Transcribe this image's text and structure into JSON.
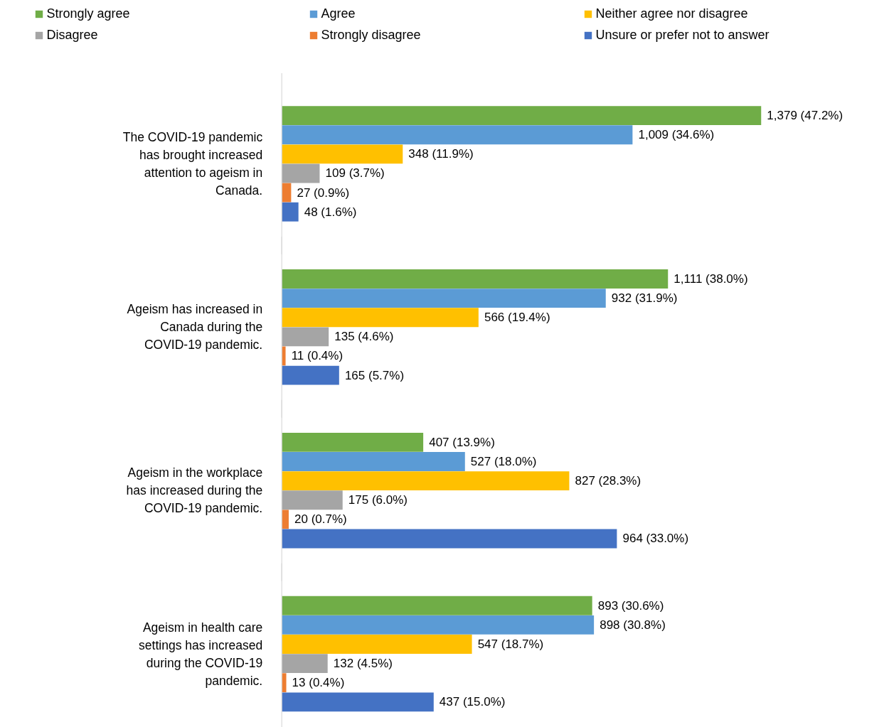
{
  "chart_data": {
    "type": "bar",
    "orientation": "horizontal",
    "legend": "top",
    "grid": false,
    "categories": [
      "The COVID-19 pandemic has brought increased attention to ageism in Canada.",
      "Ageism has increased in Canada during the COVID-19 pandemic.",
      "Ageism in the workplace has increased during the COVID-19 pandemic.",
      "Ageism in health care settings has increased during the COVID-19 pandemic."
    ],
    "series": [
      {
        "name": "Strongly agree",
        "color": "#70ad47",
        "values": [
          1379,
          1111,
          407,
          893
        ],
        "value_labels": [
          "1,379 (47.2%)",
          "1,111 (38.0%)",
          "407 (13.9%)",
          "893 (30.6%)"
        ]
      },
      {
        "name": "Agree",
        "color": "#5b9bd5",
        "values": [
          1009,
          932,
          527,
          898
        ],
        "value_labels": [
          "1,009 (34.6%)",
          "932 (31.9%)",
          "527 (18.0%)",
          "898 (30.8%)"
        ]
      },
      {
        "name": "Neither agree nor disagree",
        "color": "#ffc000",
        "values": [
          348,
          566,
          827,
          547
        ],
        "value_labels": [
          "348 (11.9%)",
          "566 (19.4%)",
          "827 (28.3%)",
          "547 (18.7%)"
        ]
      },
      {
        "name": "Disagree",
        "color": "#a5a5a5",
        "values": [
          109,
          135,
          175,
          132
        ],
        "value_labels": [
          "109 (3.7%)",
          "135 (4.6%)",
          "175 (6.0%)",
          "132 (4.5%)"
        ]
      },
      {
        "name": "Strongly disagree",
        "color": "#ed7d31",
        "values": [
          27,
          11,
          20,
          13
        ],
        "value_labels": [
          "27 (0.9%)",
          "11 (0.4%)",
          "20 (0.7%)",
          "13 (0.4%)"
        ]
      },
      {
        "name": "Unsure or prefer not to answer",
        "color": "#4472c4",
        "values": [
          48,
          165,
          964,
          437
        ],
        "value_labels": [
          "48 (1.6%)",
          "165 (5.7%)",
          "964 (33.0%)",
          "437 (15.0%)"
        ]
      }
    ]
  }
}
